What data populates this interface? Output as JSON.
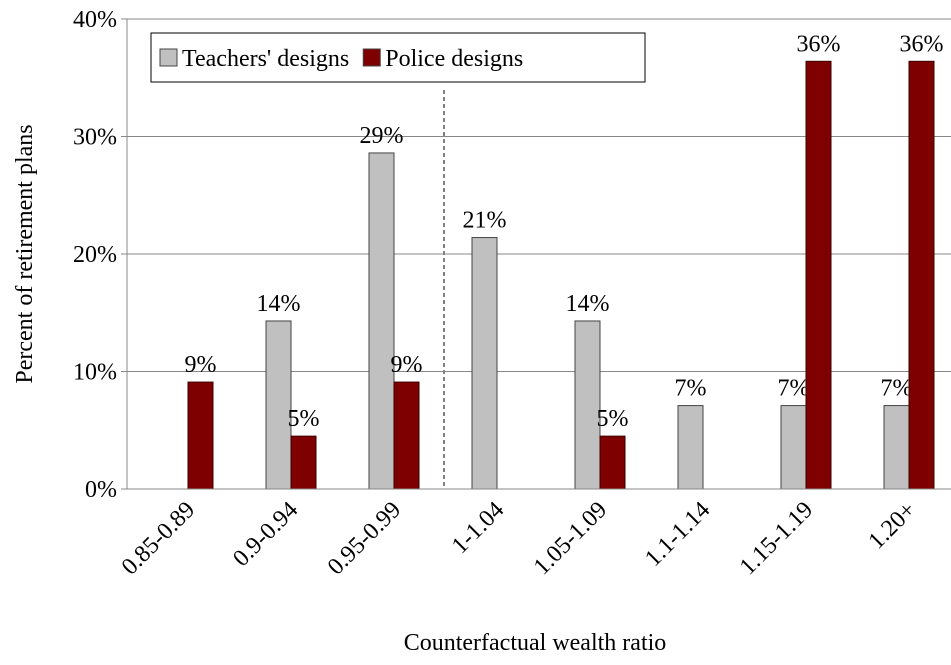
{
  "chart_data": {
    "type": "bar",
    "x_label": "Counterfactual wealth ratio",
    "y_label": "Percent of retirement plans",
    "categories": [
      "0.85-0.89",
      "0.9-0.94",
      "0.95-0.99",
      "1-1.04",
      "1.05-1.09",
      "1.1-1.14",
      "1.15-1.19",
      "1.20+"
    ],
    "series": [
      {
        "name": "Teachers' designs",
        "color": "#c0c0c0",
        "values": [
          null,
          14.3,
          28.6,
          21.4,
          14.3,
          7.1,
          7.1,
          7.1
        ],
        "value_labels": [
          null,
          "14%",
          "29%",
          "21%",
          "14%",
          "7%",
          "7%",
          "7%"
        ]
      },
      {
        "name": "Police designs",
        "color": "#7f0000",
        "values": [
          9.1,
          4.5,
          9.1,
          null,
          4.5,
          null,
          36.4,
          36.4
        ],
        "value_labels": [
          "9%",
          "5%",
          "9%",
          null,
          "5%",
          null,
          "36%",
          "36%"
        ]
      }
    ],
    "ylim": [
      0,
      40
    ],
    "yticks": [
      {
        "value": 0,
        "label": "0%"
      },
      {
        "value": 10,
        "label": "10%"
      },
      {
        "value": 20,
        "label": "20%"
      },
      {
        "value": 30,
        "label": "30%"
      },
      {
        "value": 40,
        "label": "40%"
      }
    ],
    "grid": true,
    "legend": "top-left"
  }
}
